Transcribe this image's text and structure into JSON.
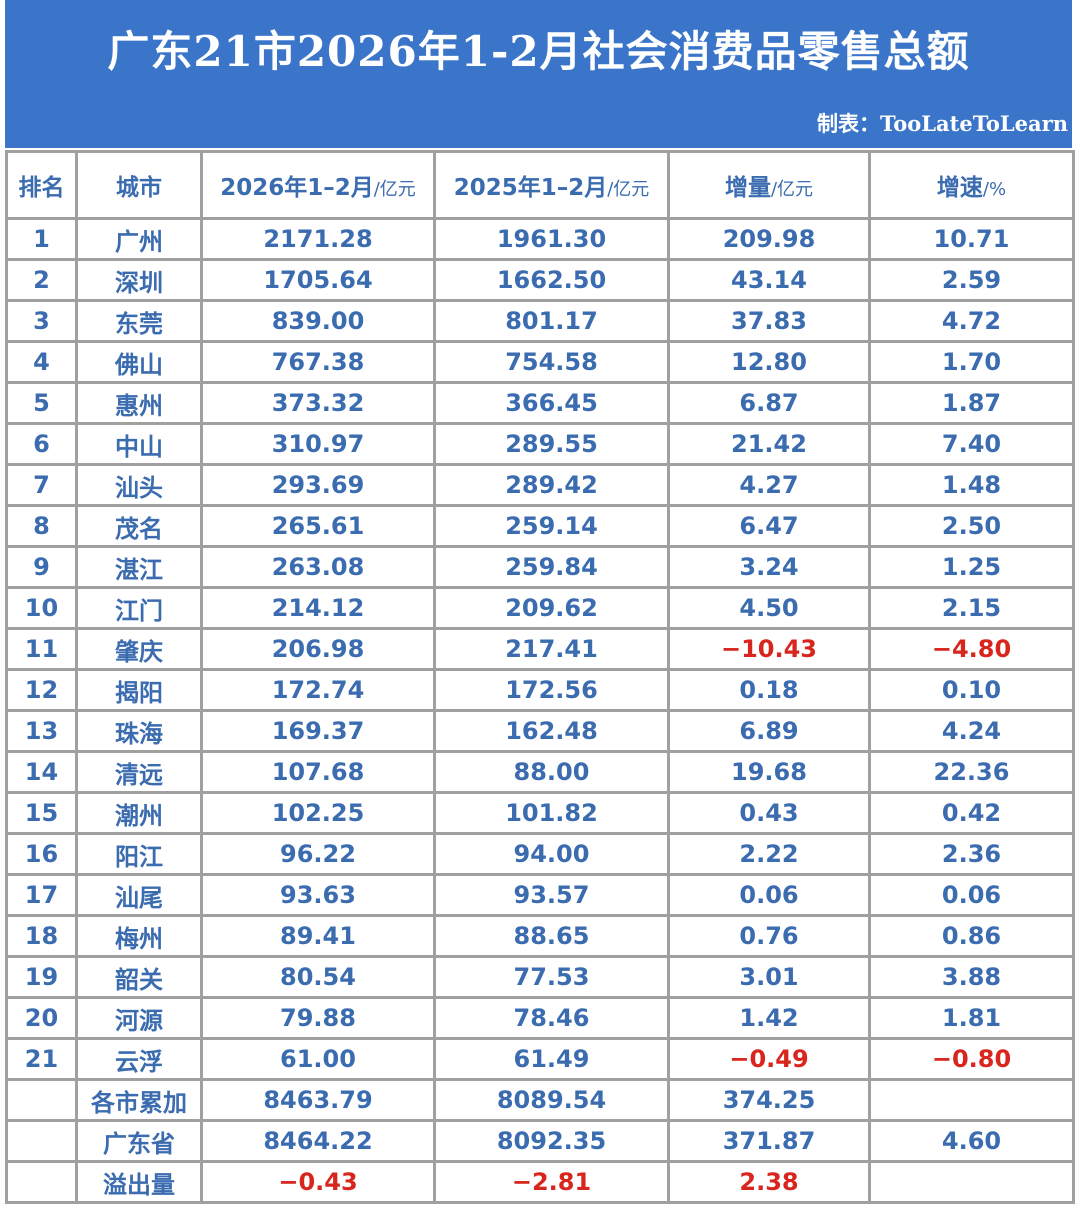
{
  "title": "广东21市2026年1-2月社会消费品零售总额",
  "credit": "制表：TooLateToLearn",
  "headers": [
    {
      "main": "排名",
      "unit": ""
    },
    {
      "main": "城市",
      "unit": ""
    },
    {
      "main": "2026年1–2月",
      "unit": "/亿元"
    },
    {
      "main": "2025年1–2月",
      "unit": "/亿元"
    },
    {
      "main": "增量",
      "unit": "/亿元"
    },
    {
      "main": "增速",
      "unit": "/%"
    }
  ],
  "rows": [
    [
      "1",
      "广州",
      "2171.28",
      "1961.30",
      "209.98",
      "10.71"
    ],
    [
      "2",
      "深圳",
      "1705.64",
      "1662.50",
      "43.14",
      "2.59"
    ],
    [
      "3",
      "东莞",
      "839.00",
      "801.17",
      "37.83",
      "4.72"
    ],
    [
      "4",
      "佛山",
      "767.38",
      "754.58",
      "12.80",
      "1.70"
    ],
    [
      "5",
      "惠州",
      "373.32",
      "366.45",
      "6.87",
      "1.87"
    ],
    [
      "6",
      "中山",
      "310.97",
      "289.55",
      "21.42",
      "7.40"
    ],
    [
      "7",
      "汕头",
      "293.69",
      "289.42",
      "4.27",
      "1.48"
    ],
    [
      "8",
      "茂名",
      "265.61",
      "259.14",
      "6.47",
      "2.50"
    ],
    [
      "9",
      "湛江",
      "263.08",
      "259.84",
      "3.24",
      "1.25"
    ],
    [
      "10",
      "江门",
      "214.12",
      "209.62",
      "4.50",
      "2.15"
    ],
    [
      "11",
      "肇庆",
      "206.98",
      "217.41",
      "−10.43",
      "−4.80"
    ],
    [
      "12",
      "揭阳",
      "172.74",
      "172.56",
      "0.18",
      "0.10"
    ],
    [
      "13",
      "珠海",
      "169.37",
      "162.48",
      "6.89",
      "4.24"
    ],
    [
      "14",
      "清远",
      "107.68",
      "88.00",
      "19.68",
      "22.36"
    ],
    [
      "15",
      "潮州",
      "102.25",
      "101.82",
      "0.43",
      "0.42"
    ],
    [
      "16",
      "阳江",
      "96.22",
      "94.00",
      "2.22",
      "2.36"
    ],
    [
      "17",
      "汕尾",
      "93.63",
      "93.57",
      "0.06",
      "0.06"
    ],
    [
      "18",
      "梅州",
      "89.41",
      "88.65",
      "0.76",
      "0.86"
    ],
    [
      "19",
      "韶关",
      "80.54",
      "77.53",
      "3.01",
      "3.88"
    ],
    [
      "20",
      "河源",
      "79.88",
      "78.46",
      "1.42",
      "1.81"
    ],
    [
      "21",
      "云浮",
      "61.00",
      "61.49",
      "−0.49",
      "−0.80"
    ],
    [
      "",
      "各市累加",
      "8463.79",
      "8089.54",
      "374.25",
      ""
    ],
    [
      "",
      "广东省",
      "8464.22",
      "8092.35",
      "371.87",
      "4.60"
    ],
    [
      "",
      "溢出量",
      "−0.43",
      "−2.81",
      "2.38",
      ""
    ]
  ],
  "colors": {
    "banner": "#3a75c9",
    "text": "#3b6cb0",
    "negative": "#d8261e"
  }
}
